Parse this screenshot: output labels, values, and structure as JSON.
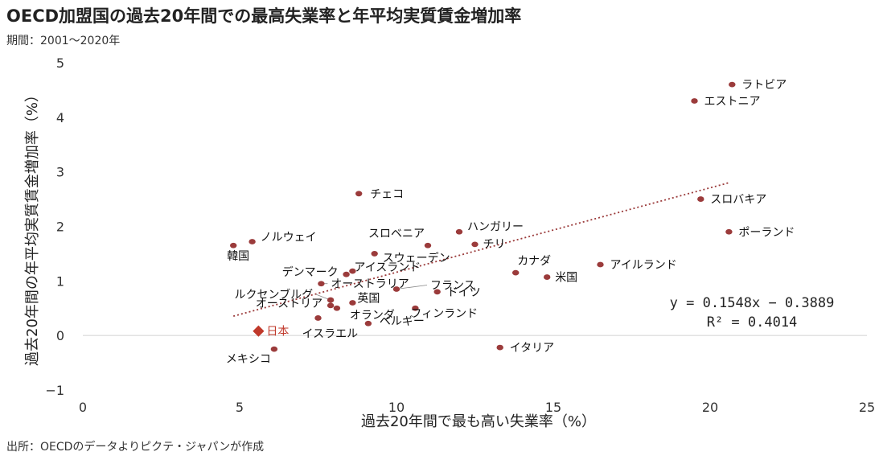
{
  "title": "OECD加盟国の過去20年間での最高失業率と年平均実質賃金増加率",
  "subtitle": "期間：2001〜2020年",
  "source": "出所：OECDのデータよりピクテ・ジャパンが作成",
  "chart_data": {
    "type": "scatter",
    "xlabel": "過去20年間で最も高い失業率（%）",
    "ylabel": "過去20年間の年平均実質賃金増加率（%）",
    "xlim": [
      0,
      25
    ],
    "ylim": [
      -1,
      5
    ],
    "xticks": [
      "0",
      "5",
      "10",
      "15",
      "20",
      "25"
    ],
    "yticks": [
      "−1",
      "0",
      "1",
      "2",
      "3",
      "4",
      "5"
    ],
    "grid": "horizontal-baseline-only",
    "point_color": "#9b3b3b",
    "highlight_color": "#c0392b",
    "points": [
      {
        "label": "ラトビア",
        "x": 20.7,
        "y": 4.6
      },
      {
        "label": "エストニア",
        "x": 19.5,
        "y": 4.3
      },
      {
        "label": "チェコ",
        "x": 8.8,
        "y": 2.6
      },
      {
        "label": "スロバキア",
        "x": 19.7,
        "y": 2.5
      },
      {
        "label": "ポーランド",
        "x": 20.6,
        "y": 1.9
      },
      {
        "label": "ハンガリー",
        "x": 12.0,
        "y": 1.9
      },
      {
        "label": "スロベニア",
        "x": 11.0,
        "y": 1.65
      },
      {
        "label": "チリ",
        "x": 12.5,
        "y": 1.67
      },
      {
        "label": "ノルウェイ",
        "x": 5.4,
        "y": 1.72
      },
      {
        "label": "韓国",
        "x": 4.8,
        "y": 1.65
      },
      {
        "label": "スウェーデン",
        "x": 9.3,
        "y": 1.5
      },
      {
        "label": "アイルランド",
        "x": 16.5,
        "y": 1.3
      },
      {
        "label": "カナダ",
        "x": 13.8,
        "y": 1.15
      },
      {
        "label": "米国",
        "x": 14.8,
        "y": 1.07
      },
      {
        "label": "デンマーク",
        "x": 8.4,
        "y": 1.12
      },
      {
        "label": "アイスランド",
        "x": 8.6,
        "y": 1.18
      },
      {
        "label": "オーストラリア",
        "x": 7.6,
        "y": 0.95
      },
      {
        "label": "フランス",
        "x": 10.0,
        "y": 0.85
      },
      {
        "label": "ドイツ",
        "x": 11.3,
        "y": 0.8
      },
      {
        "label": "ルクセンブルグ",
        "x": 7.9,
        "y": 0.65
      },
      {
        "label": "オーストリア",
        "x": 7.9,
        "y": 0.55
      },
      {
        "label": "英国",
        "x": 8.6,
        "y": 0.6
      },
      {
        "label": "オランダ",
        "x": 8.1,
        "y": 0.5
      },
      {
        "label": "フィンランド",
        "x": 10.6,
        "y": 0.5
      },
      {
        "label": "ベルギー",
        "x": 9.1,
        "y": 0.22
      },
      {
        "label": "イスラエル",
        "x": 7.5,
        "y": 0.32
      },
      {
        "label": "日本",
        "x": 5.6,
        "y": 0.08,
        "highlight": true
      },
      {
        "label": "イタリア",
        "x": 13.3,
        "y": -0.22
      },
      {
        "label": "メキシコ",
        "x": 6.1,
        "y": -0.25
      }
    ],
    "trendline": {
      "type": "linear",
      "slope": 0.1548,
      "intercept": -0.3889,
      "x_range": [
        4.8,
        20.6
      ],
      "equation": "y = 0.1548x − 0.3889",
      "r_squared_label": "R² = 0.4014"
    }
  }
}
